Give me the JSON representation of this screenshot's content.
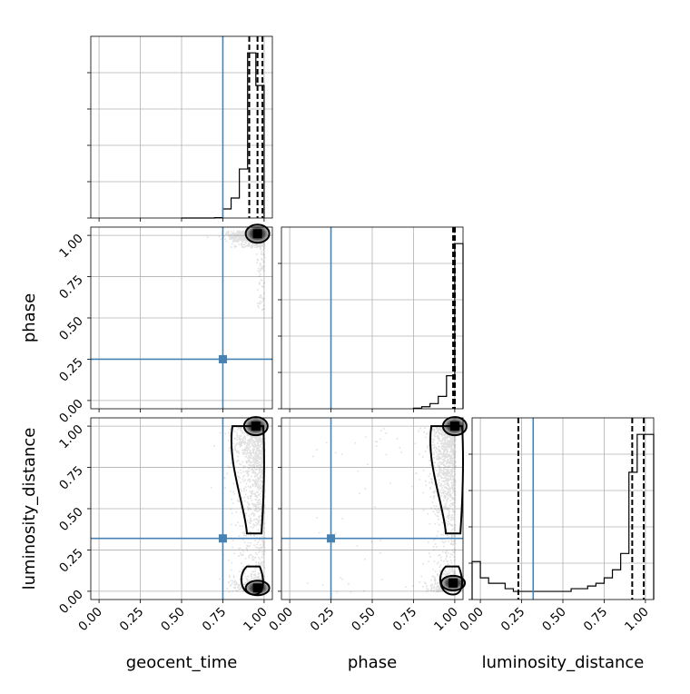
{
  "chart_data": {
    "type": "corner",
    "parameters": [
      "geocent_time",
      "phase",
      "luminosity_distance"
    ],
    "truths": {
      "geocent_time": 0.75,
      "phase": 0.25,
      "luminosity_distance": 0.32
    },
    "tick_values": [
      0.0,
      0.25,
      0.5,
      0.75,
      1.0
    ],
    "tick_labels": [
      "0.00",
      "0.25",
      "0.50",
      "0.75",
      "1.00"
    ],
    "axis_range": [
      -0.05,
      1.05
    ],
    "grid": true,
    "colors": {
      "truth": "#4682b4",
      "hist": "#000000",
      "scatter": "#555555",
      "grid": "#b0b0b0"
    },
    "panels": [
      {
        "name": "geocent_time-hist",
        "type": "histogram",
        "x": "geocent_time",
        "edges": [
          0.5,
          0.55,
          0.6,
          0.65,
          0.7,
          0.75,
          0.8,
          0.85,
          0.9,
          0.95,
          1.0
        ],
        "counts": [
          0,
          0,
          0,
          0,
          0.2,
          5,
          11,
          27,
          91,
          73
        ],
        "quantiles": [
          0.91,
          0.96,
          0.99
        ]
      },
      {
        "name": "phase-hist",
        "type": "histogram",
        "x": "phase",
        "edges": [
          0.75,
          0.8,
          0.85,
          0.9,
          0.95,
          1.0,
          1.05
        ],
        "counts": [
          0.3,
          1,
          2.5,
          6,
          16,
          80
        ],
        "quantiles": [
          0.99,
          1.0,
          1.0
        ]
      },
      {
        "name": "luminosity_distance-hist",
        "type": "histogram",
        "x": "luminosity_distance",
        "edges": [
          -0.05,
          0.0,
          0.05,
          0.1,
          0.15,
          0.2,
          0.25,
          0.3,
          0.35,
          0.4,
          0.45,
          0.5,
          0.55,
          0.6,
          0.65,
          0.7,
          0.75,
          0.8,
          0.85,
          0.9,
          0.95,
          1.0,
          1.05
        ],
        "counts": [
          14,
          8,
          6,
          6,
          4,
          3,
          3,
          3,
          3,
          3,
          3,
          3,
          4,
          4,
          5,
          6,
          8,
          11,
          17,
          47,
          61,
          61
        ],
        "quantiles": [
          0.23,
          0.92,
          0.99
        ]
      },
      {
        "name": "phase-vs-geocent_time",
        "type": "scatter2d",
        "x": "geocent_time",
        "y": "phase",
        "density": "concentrated near geocent_time 0.95-1.0 and phase 1.0",
        "contour_blobs": [
          [
            0.96,
            1.01
          ]
        ]
      },
      {
        "name": "luminosity_distance-vs-geocent_time",
        "type": "scatter2d",
        "x": "geocent_time",
        "y": "luminosity_distance",
        "density": "column near geocent_time 0.93-1.0 spanning luminosity_distance 0.0-1.0",
        "contour_blobs": [
          [
            0.95,
            1.0
          ],
          [
            0.96,
            0.02
          ]
        ]
      },
      {
        "name": "luminosity_distance-vs-phase",
        "type": "scatter2d",
        "x": "phase",
        "y": "luminosity_distance",
        "density": "column near phase 1.0 spanning luminosity_distance 0.0-1.0",
        "contour_blobs": [
          [
            1.0,
            1.0
          ],
          [
            0.99,
            0.05
          ]
        ]
      }
    ]
  }
}
